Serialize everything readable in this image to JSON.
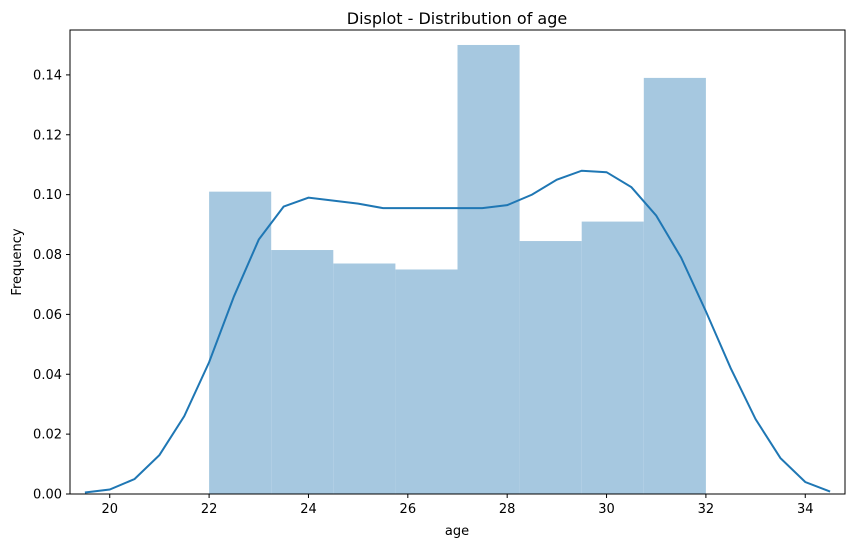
{
  "chart_data": {
    "type": "bar",
    "title": "Displot - Distribution of age",
    "xlabel": "age",
    "ylabel": "Frequency",
    "xlim": [
      19.2,
      34.8
    ],
    "ylim": [
      0,
      0.155
    ],
    "xticks": [
      20,
      22,
      24,
      26,
      28,
      30,
      32,
      34
    ],
    "yticks": [
      0.0,
      0.02,
      0.04,
      0.06,
      0.08,
      0.1,
      0.12,
      0.14
    ],
    "ytick_decimals": 2,
    "grid": false,
    "legend": "none",
    "bins": {
      "edges": [
        22.0,
        23.25,
        24.5,
        25.75,
        27.0,
        28.25,
        29.5,
        30.75,
        32.0
      ],
      "values": [
        0.101,
        0.0815,
        0.077,
        0.075,
        0.15,
        0.0845,
        0.091,
        0.139
      ],
      "color": "#a6c8e0"
    },
    "kde": {
      "color": "#1f77b4",
      "x": [
        19.5,
        20.0,
        20.5,
        21.0,
        21.5,
        22.0,
        22.5,
        23.0,
        23.5,
        24.0,
        24.5,
        25.0,
        25.5,
        26.0,
        26.5,
        27.0,
        27.5,
        28.0,
        28.5,
        29.0,
        29.5,
        30.0,
        30.5,
        31.0,
        31.5,
        32.0,
        32.5,
        33.0,
        33.5,
        34.0,
        34.5
      ],
      "y": [
        0.0005,
        0.0015,
        0.005,
        0.013,
        0.026,
        0.044,
        0.066,
        0.085,
        0.096,
        0.099,
        0.098,
        0.097,
        0.0955,
        0.0955,
        0.0955,
        0.0955,
        0.0955,
        0.0965,
        0.1,
        0.105,
        0.108,
        0.1075,
        0.1025,
        0.093,
        0.079,
        0.061,
        0.042,
        0.025,
        0.012,
        0.004,
        0.0008
      ]
    }
  }
}
